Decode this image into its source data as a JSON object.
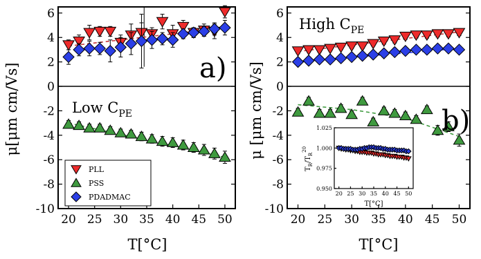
{
  "chart_data": [
    {
      "panel": "a",
      "type": "scatter",
      "panel_letter": "a)",
      "annotation": "Low C",
      "annotation_sub": "PE",
      "xlabel": "T[°C]",
      "ylabel": "μ[μm cm/Vs]",
      "xlim": [
        18,
        52
      ],
      "ylim": [
        -10,
        6.5
      ],
      "xticks": [
        20,
        25,
        30,
        35,
        40,
        45,
        50
      ],
      "yticks": [
        -10,
        -8,
        -6,
        -4,
        -2,
        0,
        2,
        4,
        6
      ],
      "xtick_labels": [
        "20",
        "25",
        "30",
        "35",
        "40",
        "45",
        "50"
      ],
      "ytick_labels": [
        "-10",
        "-8",
        "-6",
        "-4",
        "-2",
        "0",
        "2",
        "4",
        "6"
      ],
      "legend_position": "bottom-left",
      "series": [
        {
          "name": "PLL",
          "marker": "triangle-down",
          "color": "#ee2b2b",
          "x": [
            20,
            22,
            24,
            26,
            28,
            30,
            32,
            34,
            36,
            38,
            40,
            42,
            44,
            46,
            48,
            50
          ],
          "y": [
            3.4,
            3.7,
            4.4,
            4.5,
            4.5,
            3.6,
            4.2,
            4.4,
            4.3,
            5.3,
            4.3,
            4.9,
            4.4,
            4.6,
            4.5,
            6.1
          ],
          "err": [
            0.4,
            0.5,
            0.6,
            0.4,
            0.4,
            0.6,
            0.9,
            0.8,
            0.5,
            0.6,
            0.7,
            0.5,
            0.4,
            0.5,
            0.6,
            0.5
          ]
        },
        {
          "name": "PSS",
          "marker": "triangle-up",
          "color": "#3f9a3f",
          "x": [
            20,
            22,
            24,
            26,
            28,
            30,
            32,
            34,
            36,
            38,
            40,
            42,
            44,
            46,
            48,
            50
          ],
          "y": [
            -3.1,
            -3.2,
            -3.4,
            -3.4,
            -3.6,
            -3.8,
            -3.9,
            -4.1,
            -4.3,
            -4.5,
            -4.6,
            -4.8,
            -5.0,
            -5.2,
            -5.5,
            -5.8
          ],
          "err": [
            0.3,
            0.3,
            0.3,
            0.3,
            0.3,
            0.3,
            0.3,
            0.35,
            0.35,
            0.4,
            0.4,
            0.4,
            0.4,
            0.45,
            0.45,
            0.5
          ]
        },
        {
          "name": "PDADMAC",
          "marker": "diamond",
          "color": "#2b3fe6",
          "x": [
            20,
            22,
            24,
            26,
            28,
            30,
            32,
            34,
            36,
            38,
            40,
            42,
            44,
            46,
            48,
            50
          ],
          "y": [
            2.4,
            3.0,
            3.1,
            3.1,
            2.9,
            3.2,
            3.5,
            3.7,
            3.8,
            3.9,
            3.8,
            4.3,
            4.4,
            4.5,
            4.7,
            4.8
          ],
          "err": [
            0.6,
            0.5,
            0.6,
            0.5,
            0.9,
            0.8,
            0.9,
            2.2,
            0.7,
            0.5,
            0.6,
            0.4,
            0.4,
            0.4,
            0.5,
            0.6
          ]
        }
      ],
      "fit_lines": [
        {
          "color": "#c83a3a",
          "x": [
            20,
            50
          ],
          "y": [
            3.3,
            4.8
          ]
        },
        {
          "color": "#3f9a3f",
          "x": [
            20,
            50
          ],
          "y": [
            -3.0,
            -5.8
          ]
        }
      ],
      "reference_line": {
        "x": 34.5,
        "y_from": 1.6,
        "y_to": 6.5
      }
    },
    {
      "panel": "b",
      "type": "scatter",
      "panel_letter": "b)",
      "annotation": "High C",
      "annotation_sub": "PE",
      "xlabel": "T[°C]",
      "ylabel": "μ [μm cm/Vs]",
      "xlim": [
        18,
        52
      ],
      "ylim": [
        -10,
        6.5
      ],
      "xticks": [
        20,
        25,
        30,
        35,
        40,
        45,
        50
      ],
      "yticks": [
        -10,
        -8,
        -6,
        -4,
        -2,
        0,
        2,
        4,
        6
      ],
      "xtick_labels": [
        "20",
        "25",
        "30",
        "35",
        "40",
        "45",
        "50"
      ],
      "ytick_labels": [
        "-10",
        "-8",
        "-6",
        "-4",
        "-2",
        "0",
        "2",
        "4",
        "6"
      ],
      "series": [
        {
          "name": "PLL",
          "marker": "triangle-down",
          "color": "#ee2b2b",
          "x": [
            20,
            22,
            24,
            26,
            28,
            30,
            32,
            34,
            36,
            38,
            40,
            42,
            44,
            46,
            48,
            50
          ],
          "y": [
            2.9,
            3.0,
            3.0,
            3.1,
            3.2,
            3.3,
            3.3,
            3.5,
            3.7,
            3.8,
            4.1,
            4.2,
            4.2,
            4.3,
            4.3,
            4.4
          ],
          "err": [
            0.2,
            0.2,
            0.2,
            0.2,
            0.2,
            0.2,
            0.2,
            0.2,
            0.25,
            0.25,
            0.25,
            0.25,
            0.25,
            0.25,
            0.25,
            0.25
          ]
        },
        {
          "name": "PSS",
          "marker": "triangle-up",
          "color": "#3f9a3f",
          "x": [
            20,
            22,
            24,
            26,
            28,
            30,
            32,
            34,
            36,
            38,
            40,
            42,
            44,
            46,
            48,
            50
          ],
          "y": [
            -2.1,
            -1.2,
            -2.2,
            -2.2,
            -1.8,
            -2.3,
            -1.2,
            -2.9,
            -2.0,
            -2.2,
            -2.4,
            -2.7,
            -1.9,
            -3.6,
            -3.3,
            -4.4
          ],
          "err": [
            0.3,
            0.3,
            0.3,
            0.3,
            0.3,
            0.3,
            0.3,
            0.3,
            0.3,
            0.3,
            0.3,
            0.3,
            0.3,
            0.4,
            0.4,
            0.5
          ]
        },
        {
          "name": "PDADMAC",
          "marker": "diamond",
          "color": "#2b3fe6",
          "x": [
            20,
            22,
            24,
            26,
            28,
            30,
            32,
            34,
            36,
            38,
            40,
            42,
            44,
            46,
            48,
            50
          ],
          "y": [
            2.0,
            2.1,
            2.2,
            2.2,
            2.3,
            2.4,
            2.5,
            2.6,
            2.7,
            2.8,
            2.9,
            3.0,
            3.0,
            3.1,
            3.1,
            3.0
          ],
          "err": [
            0.15,
            0.15,
            0.15,
            0.15,
            0.15,
            0.15,
            0.15,
            0.15,
            0.15,
            0.15,
            0.15,
            0.15,
            0.15,
            0.15,
            0.15,
            0.15
          ]
        }
      ],
      "fit_lines": [
        {
          "color": "#c83a3a",
          "x": [
            20,
            50
          ],
          "y": [
            2.85,
            4.45
          ]
        },
        {
          "color": "#2b3fe6",
          "x": [
            20,
            50
          ],
          "y": [
            2.0,
            3.1
          ]
        },
        {
          "color": "#3f9a3f",
          "x": [
            20,
            30,
            40,
            50
          ],
          "y": [
            -1.5,
            -1.9,
            -2.6,
            -4.1
          ]
        }
      ]
    },
    {
      "panel": "inset",
      "type": "scatter",
      "ylabel": "T",
      "ylabel_sub1": "R",
      "ylabel_mid": "/T",
      "ylabel_sub2": "R",
      "ylabel_sup": "20",
      "xlabel": "T[°C]",
      "xlim": [
        18,
        52
      ],
      "ylim": [
        0.95,
        1.025
      ],
      "xticks": [
        20,
        25,
        30,
        35,
        40,
        45,
        50
      ],
      "yticks": [
        0.95,
        0.975,
        1.0,
        1.025
      ],
      "xtick_labels": [
        "20",
        "25",
        "30",
        "35",
        "40",
        "45",
        "50"
      ],
      "ytick_labels": [
        "0.950",
        "0.975",
        "1.000",
        "1.025"
      ],
      "series": [
        {
          "name": "PLL",
          "marker": "triangle-down",
          "color": "#ee2b2b",
          "x": [
            20,
            21,
            22,
            23,
            24,
            25,
            26,
            27,
            28,
            29,
            30,
            31,
            32,
            33,
            34,
            35,
            36,
            37,
            38,
            39,
            40,
            41,
            42,
            43,
            44,
            45,
            46,
            47,
            48,
            49,
            50
          ],
          "y": [
            1.0,
            0.999,
            0.999,
            0.998,
            0.998,
            0.997,
            0.997,
            0.996,
            0.996,
            0.995,
            0.995,
            0.995,
            0.994,
            0.994,
            0.994,
            0.993,
            0.993,
            0.992,
            0.992,
            0.992,
            0.991,
            0.991,
            0.99,
            0.99,
            0.99,
            0.989,
            0.989,
            0.989,
            0.988,
            0.988,
            0.987
          ]
        },
        {
          "name": "PDADMAC",
          "marker": "diamond",
          "color": "#2b3fe6",
          "x": [
            20,
            21,
            22,
            23,
            24,
            25,
            26,
            27,
            28,
            29,
            30,
            31,
            32,
            33,
            34,
            35,
            36,
            37,
            38,
            39,
            40,
            41,
            42,
            43,
            44,
            45,
            46,
            47,
            48,
            49,
            50
          ],
          "y": [
            1.0,
            1.0,
            0.999,
            0.999,
            0.999,
            0.999,
            0.998,
            0.998,
            0.998,
            0.999,
            0.999,
            1.0,
            1.0,
            1.001,
            1.001,
            1.001,
            1.0,
            1.0,
            1.0,
            0.999,
            0.999,
            0.998,
            0.998,
            0.998,
            0.998,
            0.997,
            0.997,
            0.997,
            0.997,
            0.996,
            0.996
          ]
        }
      ]
    }
  ],
  "legend": {
    "entries": [
      {
        "label": "PLL",
        "marker": "triangle-down",
        "color": "#ee2b2b"
      },
      {
        "label": "PSS",
        "marker": "triangle-up",
        "color": "#3f9a3f"
      },
      {
        "label": "PDADMAC",
        "marker": "diamond",
        "color": "#2b3fe6"
      }
    ]
  }
}
